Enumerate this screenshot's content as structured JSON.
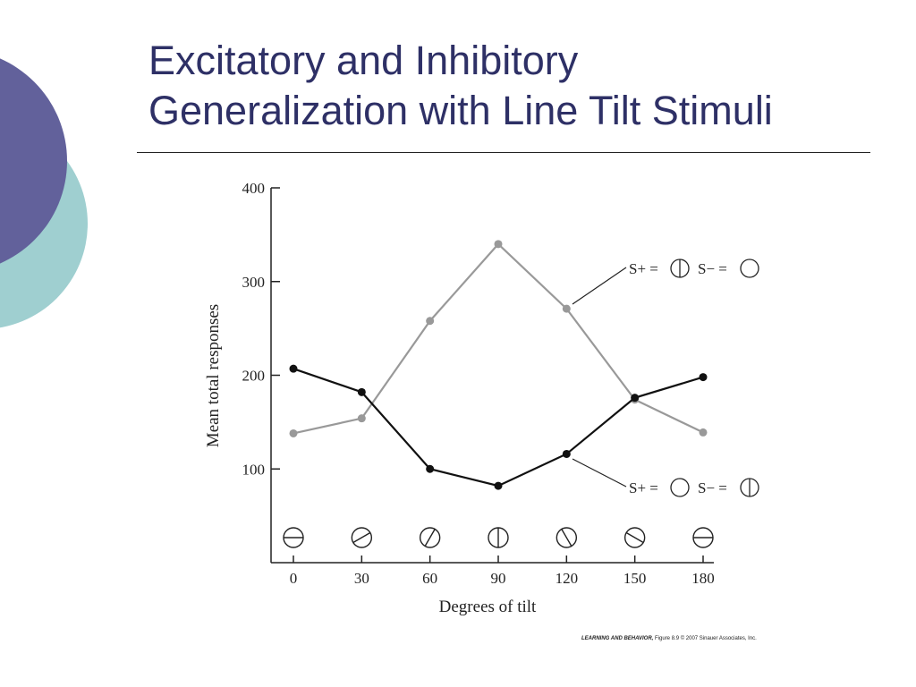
{
  "slide": {
    "title_line1": "Excitatory and Inhibitory",
    "title_line2": "Generalization with Line Tilt Stimuli",
    "credit_book": "LEARNING AND BEHAVIOR,",
    "credit_rest": "Figure 8.9  © 2007 Sinauer Associates, Inc.",
    "colors": {
      "title": "#2e3066",
      "circle_dark": "#62619b",
      "circle_light": "#9fcfd0"
    }
  },
  "chart_data": {
    "type": "line",
    "xlabel": "Degrees of tilt",
    "ylabel": "Mean total responses",
    "x": [
      0,
      30,
      60,
      90,
      120,
      150,
      180
    ],
    "x_tick_labels": [
      "0",
      "30",
      "60",
      "90",
      "120",
      "150",
      "180"
    ],
    "y_ticks": [
      100,
      200,
      300,
      400
    ],
    "y_tick_labels": [
      "100",
      "200",
      "300",
      "400"
    ],
    "xlim": [
      0,
      180
    ],
    "ylim": [
      0,
      400
    ],
    "grid": false,
    "stimulus_icons": [
      "horizontal",
      "tilt-30",
      "tilt-60",
      "vertical",
      "tilt-120",
      "tilt-150",
      "horizontal"
    ],
    "series": [
      {
        "values": [
          138,
          154,
          258,
          340,
          271,
          174,
          139
        ],
        "color": "#999999",
        "label_splus": "S+ =",
        "label_sminus": "S− =",
        "splus_icon": "vertical-line",
        "sminus_icon": "empty-circle"
      },
      {
        "values": [
          207,
          182,
          100,
          82,
          116,
          176,
          198
        ],
        "color": "#111111",
        "label_splus": "S+ =",
        "label_sminus": "S− =",
        "splus_icon": "empty-circle",
        "sminus_icon": "vertical-line"
      }
    ]
  }
}
